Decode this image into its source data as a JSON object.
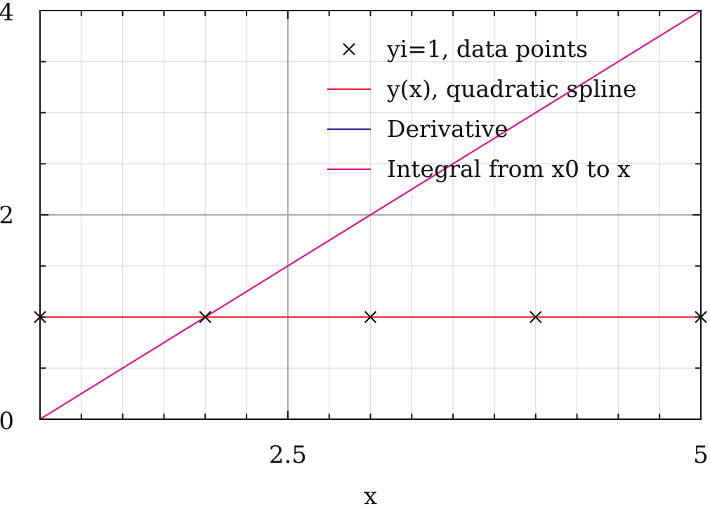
{
  "chart_data": {
    "type": "line",
    "title": "",
    "xlabel": "x",
    "ylabel": "",
    "xlim": [
      1,
      5
    ],
    "ylim": [
      0,
      4
    ],
    "x_ticks": [
      2.5,
      5
    ],
    "y_ticks": [
      0,
      2,
      4
    ],
    "x_minor_step": 0.25,
    "y_minor_step": 0.5,
    "grid": true,
    "legend_position": "top-right",
    "series": [
      {
        "name": "yi=1, data points",
        "kind": "scatter",
        "marker": "x",
        "color": "#111111",
        "x": [
          1,
          2,
          3,
          4,
          5
        ],
        "y": [
          1,
          1,
          1,
          1,
          1
        ]
      },
      {
        "name": "y(x), quadratic spline",
        "kind": "line",
        "color": "#e8202a",
        "x": [
          1,
          5
        ],
        "y": [
          1,
          1
        ]
      },
      {
        "name": "Derivative",
        "kind": "line",
        "color": "#2a2a9a",
        "x": [
          1,
          5
        ],
        "y": [
          0,
          0
        ]
      },
      {
        "name": "Integral from x0 to x",
        "kind": "line",
        "color": "#e0138c",
        "x": [
          1,
          5
        ],
        "y": [
          0,
          4
        ]
      }
    ]
  }
}
